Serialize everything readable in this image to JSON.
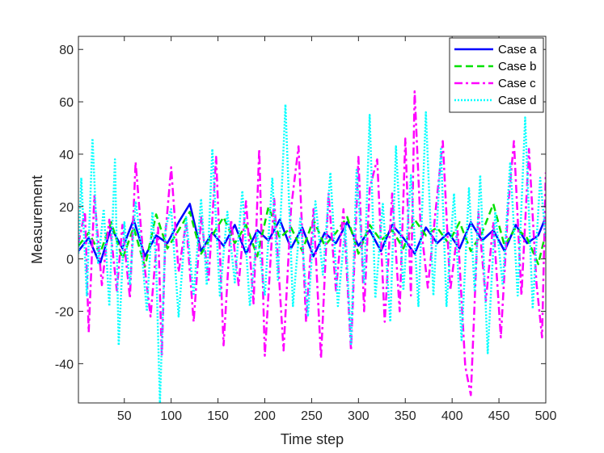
{
  "chart_data": {
    "type": "line",
    "title": "",
    "xlabel": "Time step",
    "ylabel": "Measurement",
    "xlim": [
      1,
      500
    ],
    "ylim": [
      -55,
      85
    ],
    "xticks": [
      50,
      100,
      150,
      200,
      250,
      300,
      350,
      400,
      450,
      500
    ],
    "yticks": [
      -40,
      -20,
      0,
      20,
      40,
      60,
      80
    ],
    "grid": false,
    "legend_position": "top-right",
    "series": [
      {
        "name": "Case a",
        "color": "#0000ff",
        "style": "solid",
        "x": [
          1,
          12,
          24,
          36,
          48,
          60,
          72,
          84,
          96,
          108,
          120,
          132,
          144,
          156,
          168,
          180,
          192,
          204,
          216,
          228,
          240,
          252,
          264,
          276,
          288,
          300,
          312,
          324,
          336,
          348,
          360,
          372,
          384,
          396,
          408,
          420,
          432,
          444,
          456,
          468,
          480,
          492,
          500
        ],
        "values": [
          3,
          8,
          -2,
          12,
          4,
          15,
          1,
          9,
          6,
          14,
          21,
          3,
          10,
          5,
          13,
          2,
          11,
          7,
          15,
          4,
          12,
          1,
          10,
          6,
          14,
          5,
          11,
          3,
          13,
          8,
          2,
          12,
          6,
          10,
          4,
          14,
          7,
          11,
          3,
          13,
          6,
          9,
          16
        ]
      },
      {
        "name": "Case b",
        "color": "#00e000",
        "style": "dashed",
        "x": [
          1,
          12,
          24,
          36,
          48,
          60,
          72,
          84,
          96,
          108,
          120,
          132,
          144,
          156,
          168,
          180,
          192,
          204,
          216,
          228,
          240,
          252,
          264,
          276,
          288,
          300,
          312,
          324,
          336,
          348,
          360,
          372,
          384,
          396,
          408,
          420,
          432,
          444,
          456,
          468,
          480,
          492,
          500
        ],
        "values": [
          5,
          10,
          2,
          14,
          0,
          12,
          -3,
          17,
          4,
          11,
          18,
          2,
          9,
          16,
          6,
          13,
          1,
          20,
          8,
          12,
          3,
          15,
          5,
          10,
          16,
          2,
          13,
          7,
          11,
          4,
          15,
          9,
          12,
          6,
          14,
          3,
          10,
          21,
          5,
          12,
          8,
          -2,
          10
        ]
      },
      {
        "name": "Case c",
        "color": "#ff00ff",
        "style": "dashdot",
        "x": [
          1,
          8,
          12,
          18,
          26,
          34,
          42,
          48,
          56,
          62,
          70,
          78,
          86,
          90,
          94,
          100,
          108,
          116,
          124,
          132,
          140,
          148,
          156,
          164,
          172,
          180,
          188,
          194,
          200,
          210,
          220,
          228,
          236,
          244,
          252,
          260,
          268,
          276,
          284,
          292,
          300,
          306,
          312,
          320,
          328,
          336,
          344,
          350,
          356,
          360,
          366,
          374,
          382,
          390,
          398,
          406,
          414,
          420,
          428,
          436,
          444,
          452,
          460,
          466,
          474,
          482,
          490,
          496,
          500
        ],
        "values": [
          6,
          18,
          -28,
          24,
          -10,
          15,
          -12,
          13,
          -15,
          37,
          2,
          -22,
          12,
          -37,
          10,
          35,
          -5,
          14,
          -24,
          16,
          -8,
          39,
          -33,
          15,
          -10,
          22,
          -17,
          42,
          -37,
          23,
          -35,
          19,
          43,
          -24,
          19,
          -38,
          25,
          -12,
          19,
          -35,
          39,
          -20,
          27,
          38,
          -24,
          25,
          -20,
          46,
          -14,
          64,
          15,
          -11,
          17,
          45,
          -12,
          11,
          -41,
          -52,
          18,
          -16,
          14,
          -30,
          21,
          45,
          -14,
          42,
          -9,
          -30,
          33
        ]
      },
      {
        "name": "Case d",
        "color": "#00ffff",
        "style": "dotted",
        "x": [
          1,
          4,
          10,
          16,
          22,
          28,
          34,
          40,
          44,
          50,
          56,
          62,
          68,
          74,
          80,
          84,
          88,
          94,
          100,
          108,
          116,
          124,
          132,
          138,
          144,
          152,
          160,
          168,
          176,
          184,
          192,
          200,
          208,
          214,
          222,
          230,
          238,
          246,
          254,
          262,
          270,
          278,
          286,
          292,
          298,
          306,
          312,
          318,
          326,
          334,
          340,
          348,
          356,
          364,
          372,
          380,
          388,
          394,
          402,
          410,
          418,
          424,
          430,
          438,
          446,
          454,
          462,
          470,
          478,
          486,
          494,
          500
        ],
        "values": [
          2,
          31,
          -14,
          46,
          -2,
          19,
          -18,
          38,
          -33,
          14,
          -10,
          22,
          5,
          -20,
          18,
          -2,
          -55,
          12,
          19,
          -22,
          16,
          -14,
          23,
          -10,
          42,
          -14,
          18,
          -9,
          26,
          -18,
          10,
          -14,
          31,
          -8,
          59,
          -18,
          16,
          -22,
          22,
          -6,
          33,
          -18,
          13,
          -33,
          34,
          -9,
          55,
          -15,
          21,
          -24,
          43,
          -12,
          32,
          -18,
          56,
          -14,
          42,
          -18,
          25,
          -31,
          27,
          -12,
          32,
          -36,
          18,
          -10,
          37,
          -14,
          54,
          -19,
          31,
          8
        ]
      }
    ]
  }
}
